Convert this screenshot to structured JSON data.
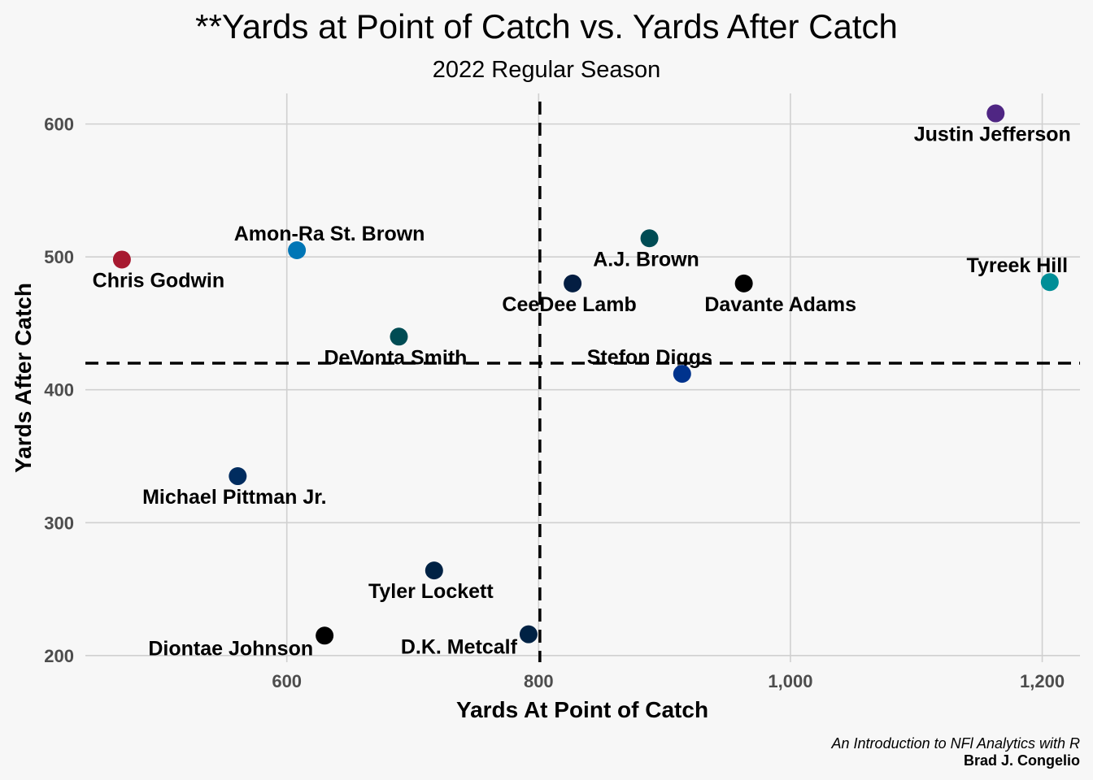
{
  "chart_data": {
    "type": "scatter",
    "title": "**Yards at Point of Catch vs. Yards After Catch",
    "subtitle": "2022 Regular Season",
    "xlabel": "Yards At Point of Catch",
    "ylabel": "Yards After Catch",
    "xlim": [
      440,
      1230
    ],
    "ylim": [
      195,
      623
    ],
    "x_ticks": [
      600,
      800,
      1000,
      1200
    ],
    "x_tick_labels": [
      "600",
      "800",
      "1,000",
      "1,200"
    ],
    "y_ticks": [
      200,
      300,
      400,
      500,
      600
    ],
    "y_tick_labels": [
      "200",
      "300",
      "400",
      "500",
      "600"
    ],
    "grid": true,
    "ref_lines": {
      "x": 801,
      "y": 420
    },
    "points": [
      {
        "name": "Justin Jefferson",
        "x": 1163,
        "y": 608,
        "color": "#4F2683",
        "label_pos": "below-left"
      },
      {
        "name": "Tyreek Hill",
        "x": 1206,
        "y": 481,
        "color": "#008E97",
        "label_pos": "above-left"
      },
      {
        "name": "Amon-Ra St. Brown",
        "x": 608,
        "y": 505,
        "color": "#0076B6",
        "label_pos": "above-right"
      },
      {
        "name": "Chris Godwin",
        "x": 469,
        "y": 498,
        "color": "#A71930",
        "label_pos": "below-right"
      },
      {
        "name": "A.J. Brown",
        "x": 888,
        "y": 514,
        "color": "#004C54",
        "label_pos": "below-left"
      },
      {
        "name": "CeeDee Lamb",
        "x": 827,
        "y": 480,
        "color": "#041E42",
        "label_pos": "below-left"
      },
      {
        "name": "Davante Adams",
        "x": 963,
        "y": 480,
        "color": "#000000",
        "label_pos": "below-right"
      },
      {
        "name": "DeVonta Smith",
        "x": 689,
        "y": 440,
        "color": "#004C54",
        "label_pos": "below-left"
      },
      {
        "name": "Stefon Diggs",
        "x": 914,
        "y": 412,
        "color": "#00338D",
        "label_pos": "above-left"
      },
      {
        "name": "Michael Pittman Jr.",
        "x": 561,
        "y": 335,
        "color": "#002C5F",
        "label_pos": "below-left"
      },
      {
        "name": "Tyler Lockett",
        "x": 717,
        "y": 264,
        "color": "#002244",
        "label_pos": "below-left"
      },
      {
        "name": "Diontae Johnson",
        "x": 630,
        "y": 215,
        "color": "#000000",
        "label_pos": "left"
      },
      {
        "name": "D.K. Metcalf",
        "x": 792,
        "y": 216,
        "color": "#002244",
        "label_pos": "left"
      }
    ]
  },
  "caption": {
    "line1": "An Introduction to NFl Analytics with R",
    "line2": "Brad J. Congelio"
  }
}
